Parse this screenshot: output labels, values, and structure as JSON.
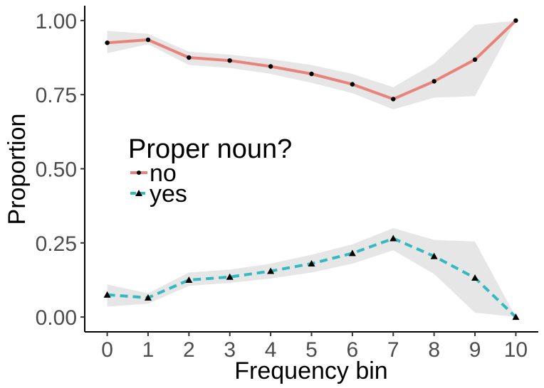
{
  "chart_data": {
    "type": "line",
    "xlabel": "Frequency bin",
    "ylabel": "Proportion",
    "x": [
      0,
      1,
      2,
      3,
      4,
      5,
      6,
      7,
      8,
      9,
      10
    ],
    "x_tick_labels": [
      "0",
      "1",
      "2",
      "3",
      "4",
      "5",
      "6",
      "7",
      "8",
      "9",
      "10"
    ],
    "y_tick_labels": [
      "0.00",
      "0.25",
      "0.50",
      "0.75",
      "1.00"
    ],
    "y_ticks": [
      0,
      0.25,
      0.5,
      0.75,
      1.0
    ],
    "xlim": [
      -0.55,
      10.55
    ],
    "ylim": [
      -0.05,
      1.05
    ],
    "grid": false,
    "legend": {
      "title": "Proper noun?",
      "placement": "left-center inside plot"
    },
    "series": [
      {
        "name": "no",
        "color": "#e8837b",
        "line_style": "solid",
        "marker": "circle",
        "values": [
          0.925,
          0.935,
          0.875,
          0.865,
          0.845,
          0.82,
          0.785,
          0.735,
          0.795,
          0.868,
          1.0
        ],
        "ci_lower": [
          0.89,
          0.92,
          0.85,
          0.84,
          0.82,
          0.79,
          0.755,
          0.7,
          0.74,
          0.745,
          1.0
        ],
        "ci_upper": [
          0.965,
          0.955,
          0.895,
          0.885,
          0.87,
          0.85,
          0.82,
          0.775,
          0.855,
          0.985,
          1.0
        ]
      },
      {
        "name": "yes",
        "color": "#35b9c1",
        "line_style": "dashed",
        "marker": "triangle",
        "values": [
          0.075,
          0.065,
          0.125,
          0.135,
          0.155,
          0.18,
          0.215,
          0.265,
          0.205,
          0.132,
          0.0
        ],
        "ci_lower": [
          0.035,
          0.045,
          0.105,
          0.115,
          0.13,
          0.15,
          0.18,
          0.225,
          0.145,
          0.015,
          0.0
        ],
        "ci_upper": [
          0.11,
          0.08,
          0.15,
          0.16,
          0.18,
          0.21,
          0.245,
          0.3,
          0.26,
          0.255,
          0.0
        ]
      }
    ],
    "ribbon_color": "#e6e6e6",
    "point_color": "#000000"
  }
}
